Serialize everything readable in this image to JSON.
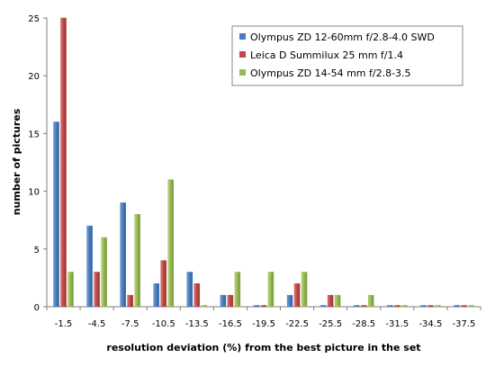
{
  "chart_data": {
    "type": "bar",
    "categories": [
      "-1.5",
      "-4.5",
      "-7.5",
      "-10.5",
      "-13.5",
      "-16.5",
      "-19.5",
      "-22.5",
      "-25.5",
      "-28.5",
      "-31.5",
      "-34.5",
      "-37.5"
    ],
    "series": [
      {
        "name": "Olympus ZD 12-60mm f/2.8-4.0 SWD",
        "color": "#4a7ebb",
        "values": [
          16,
          7,
          9,
          2,
          3,
          1,
          0,
          1,
          0,
          0,
          0,
          0,
          0
        ]
      },
      {
        "name": "Leica D Summilux 25 mm f/1.4",
        "color": "#be4b48",
        "values": [
          25,
          3,
          1,
          4,
          2,
          1,
          0,
          2,
          1,
          0,
          0,
          0,
          0
        ]
      },
      {
        "name": "Olympus ZD 14-54 mm f/2.8-3.5",
        "color": "#98b954",
        "values": [
          3,
          6,
          8,
          11,
          0,
          3,
          3,
          3,
          1,
          1,
          0,
          0,
          0
        ]
      }
    ],
    "yticks": [
      0,
      5,
      10,
      15,
      20,
      25
    ],
    "ylim": [
      0,
      25
    ],
    "xlabel": "resolution deviation (%) from the best picture in the set",
    "ylabel": "number of pictures",
    "grid": false,
    "legend_position": "top-right"
  }
}
